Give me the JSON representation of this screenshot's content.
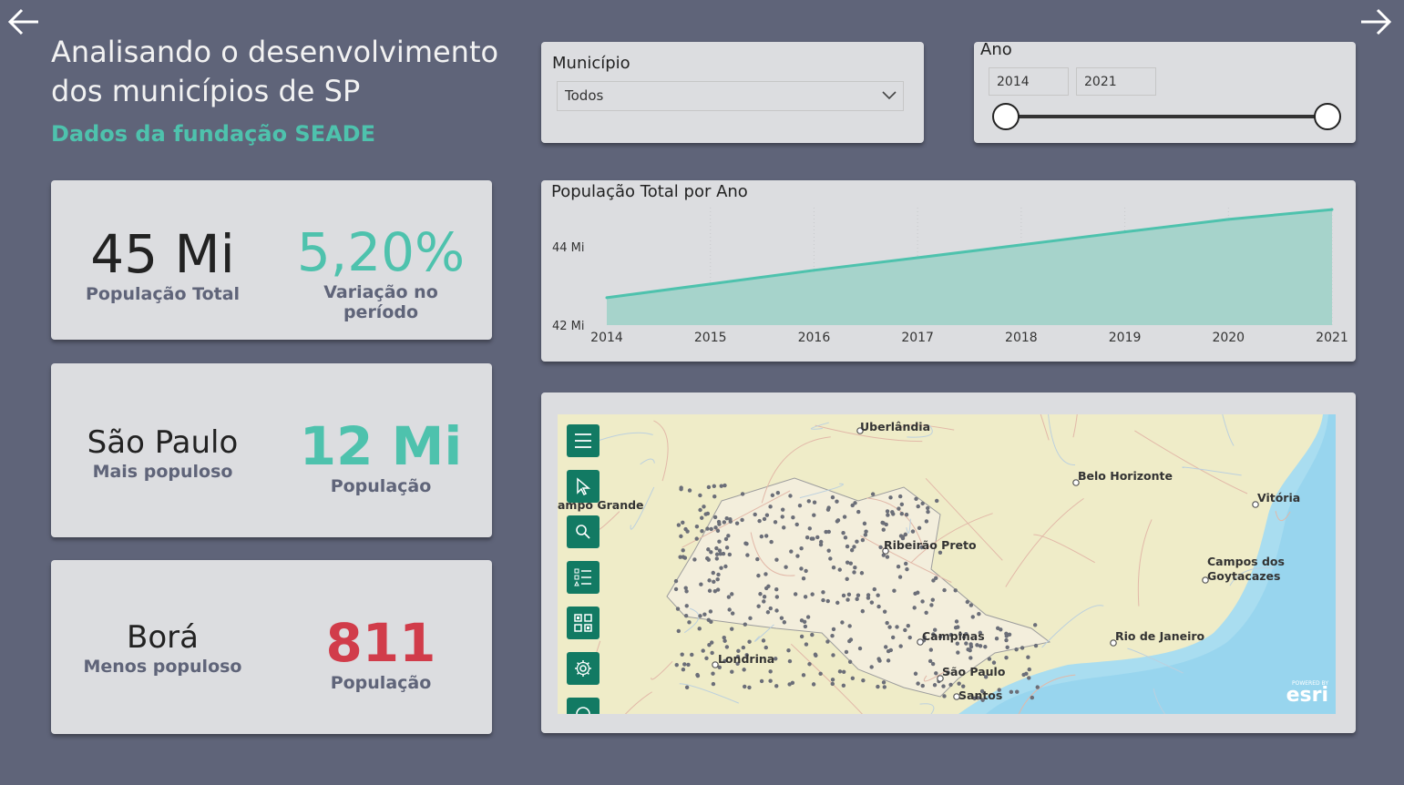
{
  "nav": {
    "back_icon": "arrow-left-icon",
    "forward_icon": "arrow-right-icon"
  },
  "header": {
    "title_line1": "Analisando o desenvolvimento",
    "title_line2": "dos municípios de SP",
    "subtitle": "Dados da fundação SEADE"
  },
  "kpis": {
    "total": {
      "value": "45 Mi",
      "label": "População Total",
      "variation": "5,20%",
      "variation_label": "Variação no período"
    },
    "most": {
      "name": "São Paulo",
      "name_label": "Mais populoso",
      "value": "12 Mi",
      "value_label": "População"
    },
    "least": {
      "name": "Borá",
      "name_label": "Menos populoso",
      "value": "811",
      "value_label": "População"
    }
  },
  "slicers": {
    "municipio": {
      "title": "Município",
      "selected": "Todos"
    },
    "ano": {
      "title": "Ano",
      "from": "2014",
      "to": "2021"
    }
  },
  "chart_data": {
    "type": "area",
    "title": "População Total por Ano",
    "x": [
      "2014",
      "2015",
      "2016",
      "2017",
      "2018",
      "2019",
      "2020",
      "2021"
    ],
    "y_tick_labels": [
      "42 Mi",
      "44 Mi"
    ],
    "y_ticks": [
      42,
      44
    ],
    "ylim": [
      42,
      45
    ],
    "series": [
      {
        "values": [
          42.7,
          43.05,
          43.4,
          43.72,
          44.05,
          44.38,
          44.7,
          44.95
        ]
      }
    ],
    "colors": {
      "line": "#4ec2ad",
      "fill": "#a6d3cb"
    }
  },
  "map": {
    "labels": [
      {
        "text": "Uberlândia"
      },
      {
        "text": "Belo Horizonte"
      },
      {
        "text": "Vitória"
      },
      {
        "text": "ampo Grande"
      },
      {
        "text": "Ribeirão Preto"
      },
      {
        "text": "Campos dos"
      },
      {
        "text": "Goytacazes"
      },
      {
        "text": "Campinas"
      },
      {
        "text": "Rio de Janeiro"
      },
      {
        "text": "Londrina"
      },
      {
        "text": "São Paulo"
      },
      {
        "text": "Santos"
      }
    ],
    "tools": [
      "menu-icon",
      "select-pointer-icon",
      "search-icon",
      "legend-list-icon",
      "qr-grid-icon",
      "settings-gear-icon",
      "locate-icon"
    ],
    "attribution_small": "POWERED BY",
    "attribution": "esri"
  },
  "colors": {
    "accent": "#4ec2ad",
    "danger": "#d13c4a",
    "background": "#5f6479",
    "card": "#dcdde0"
  }
}
